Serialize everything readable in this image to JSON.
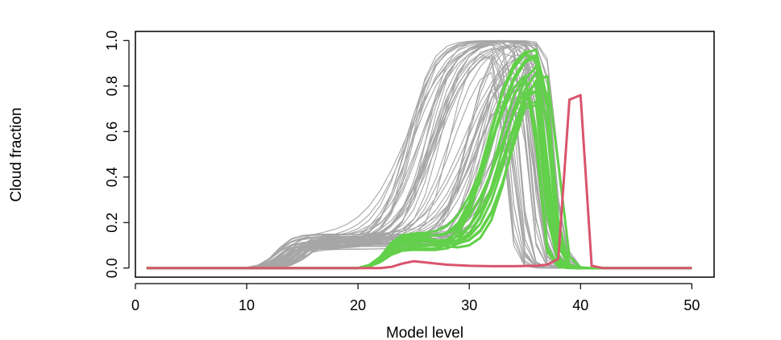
{
  "chart_data": {
    "type": "line",
    "xlabel": "Model level",
    "ylabel": "Cloud fraction",
    "xlim": [
      0,
      52
    ],
    "ylim": [
      -0.04,
      1.04
    ],
    "x_ticks": [
      0,
      10,
      20,
      30,
      40,
      50
    ],
    "x_tick_labels": [
      "0",
      "10",
      "20",
      "30",
      "40",
      "50"
    ],
    "y_ticks": [
      0.0,
      0.2,
      0.4,
      0.6,
      0.8,
      1.0
    ],
    "y_tick_labels": [
      "0.0",
      "0.2",
      "0.4",
      "0.6",
      "0.8",
      "1.0"
    ],
    "grid": false,
    "legend": "none",
    "colors": {
      "ensemble": "#a6a6a6",
      "selected": "#62d04a",
      "highlight": "#d9546e"
    },
    "ensemble_profiles": {
      "count": 60,
      "x_range": [
        1,
        50
      ],
      "description_level_ranges": {
        "low_plateau_start": [
          11,
          14
        ],
        "low_plateau_value": [
          0.08,
          0.15
        ],
        "rise_midpoint": [
          24,
          34
        ],
        "peak_value": 1.0,
        "drop_level": [
          33,
          38
        ]
      }
    },
    "selected_profiles": {
      "count": 15,
      "x_range": [
        1,
        50
      ],
      "rise_start_level": 21,
      "bump_level": 25,
      "bump_value": [
        0.08,
        0.17
      ],
      "peak_level": [
        35,
        36
      ],
      "peak_value": 1.0,
      "drop_level": [
        36,
        38
      ]
    },
    "highlight_series": {
      "x": [
        1,
        22,
        23,
        24,
        25,
        26,
        27,
        28,
        30,
        32,
        34,
        36,
        37,
        38,
        39,
        40,
        41,
        42,
        50
      ],
      "y": [
        0,
        0,
        0.005,
        0.02,
        0.03,
        0.025,
        0.02,
        0.015,
        0.01,
        0.008,
        0.008,
        0.01,
        0.015,
        0.04,
        0.74,
        0.76,
        0.01,
        0,
        0
      ]
    }
  }
}
